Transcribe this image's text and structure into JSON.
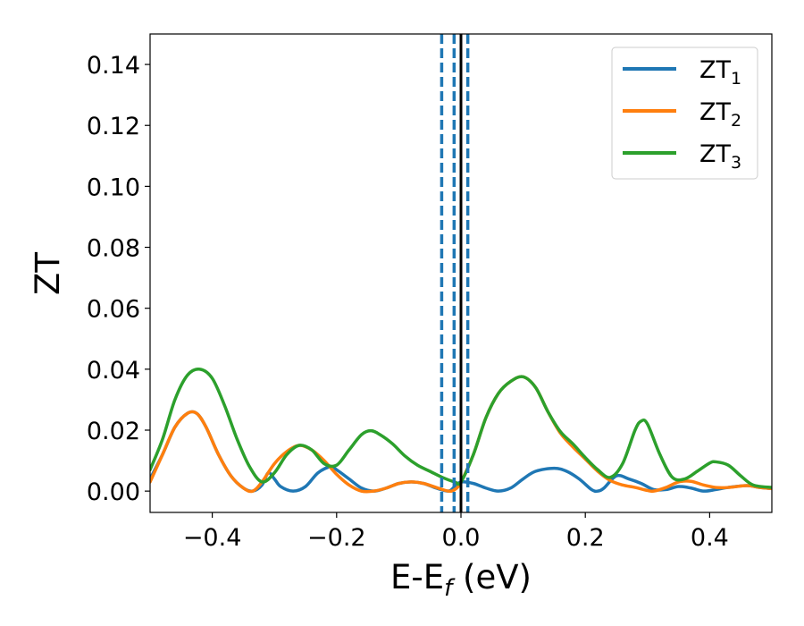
{
  "chart_data": {
    "type": "line",
    "xlabel": "E-E",
    "xlabel_sub": "f",
    "xlabel_unit": " (eV)",
    "ylabel": "ZT",
    "xlim": [
      -0.5,
      0.5
    ],
    "ylim": [
      -0.007,
      0.15
    ],
    "xticks": [
      -0.4,
      -0.2,
      0.0,
      0.2,
      0.4
    ],
    "xtick_labels": [
      "−0.4",
      "−0.2",
      "0.0",
      "0.2",
      "0.4"
    ],
    "yticks": [
      0.0,
      0.02,
      0.04,
      0.06,
      0.08,
      0.1,
      0.12,
      0.14
    ],
    "ytick_labels": [
      "0.00",
      "0.02",
      "0.04",
      "0.06",
      "0.08",
      "0.10",
      "0.12",
      "0.14"
    ],
    "grid": false,
    "legend_position": "top-right",
    "series": [
      {
        "name": "ZT",
        "name_sub": "1",
        "color": "#1f77b4",
        "points": [
          [
            -0.5,
            0.004
          ],
          [
            -0.48,
            0.012
          ],
          [
            -0.46,
            0.021
          ],
          [
            -0.44,
            0.0255
          ],
          [
            -0.425,
            0.0255
          ],
          [
            -0.41,
            0.021
          ],
          [
            -0.39,
            0.012
          ],
          [
            -0.37,
            0.005
          ],
          [
            -0.35,
            0.001
          ],
          [
            -0.335,
            0.0
          ],
          [
            -0.32,
            0.002
          ],
          [
            -0.31,
            0.006
          ],
          [
            -0.3,
            0.004
          ],
          [
            -0.29,
            0.0015
          ],
          [
            -0.27,
            0.0
          ],
          [
            -0.25,
            0.0015
          ],
          [
            -0.23,
            0.006
          ],
          [
            -0.21,
            0.008
          ],
          [
            -0.2,
            0.007
          ],
          [
            -0.18,
            0.004
          ],
          [
            -0.16,
            0.001
          ],
          [
            -0.14,
            0.0
          ],
          [
            -0.12,
            0.001
          ],
          [
            -0.1,
            0.0025
          ],
          [
            -0.08,
            0.003
          ],
          [
            -0.06,
            0.0025
          ],
          [
            -0.04,
            0.001
          ],
          [
            -0.02,
            0.0
          ],
          [
            -0.01,
            0.0015
          ],
          [
            0.0,
            0.003
          ],
          [
            0.02,
            0.0025
          ],
          [
            0.04,
            0.001
          ],
          [
            0.06,
            0.0
          ],
          [
            0.08,
            0.001
          ],
          [
            0.1,
            0.004
          ],
          [
            0.12,
            0.0065
          ],
          [
            0.15,
            0.0075
          ],
          [
            0.17,
            0.0065
          ],
          [
            0.19,
            0.004
          ],
          [
            0.21,
            0.0005
          ],
          [
            0.22,
            0.0
          ],
          [
            0.23,
            0.001
          ],
          [
            0.25,
            0.005
          ],
          [
            0.27,
            0.004
          ],
          [
            0.29,
            0.0025
          ],
          [
            0.31,
            0.0005
          ],
          [
            0.33,
            0.0005
          ],
          [
            0.35,
            0.0015
          ],
          [
            0.37,
            0.001
          ],
          [
            0.39,
            0.0
          ],
          [
            0.41,
            0.0005
          ],
          [
            0.43,
            0.0012
          ],
          [
            0.46,
            0.0018
          ],
          [
            0.48,
            0.0012
          ],
          [
            0.5,
            0.0008
          ]
        ]
      },
      {
        "name": "ZT",
        "name_sub": "2",
        "color": "#ff7f0e",
        "points": [
          [
            -0.5,
            0.003
          ],
          [
            -0.48,
            0.012
          ],
          [
            -0.46,
            0.021
          ],
          [
            -0.44,
            0.0255
          ],
          [
            -0.425,
            0.0255
          ],
          [
            -0.41,
            0.021
          ],
          [
            -0.39,
            0.012
          ],
          [
            -0.37,
            0.005
          ],
          [
            -0.35,
            0.001
          ],
          [
            -0.335,
            0.0
          ],
          [
            -0.32,
            0.003
          ],
          [
            -0.3,
            0.009
          ],
          [
            -0.28,
            0.013
          ],
          [
            -0.26,
            0.015
          ],
          [
            -0.24,
            0.0135
          ],
          [
            -0.22,
            0.01
          ],
          [
            -0.2,
            0.0055
          ],
          [
            -0.18,
            0.002
          ],
          [
            -0.16,
            0.0
          ],
          [
            -0.14,
            0.0
          ],
          [
            -0.12,
            0.001
          ],
          [
            -0.1,
            0.0025
          ],
          [
            -0.08,
            0.003
          ],
          [
            -0.06,
            0.0025
          ],
          [
            -0.04,
            0.0012
          ],
          [
            -0.02,
            0.0
          ],
          [
            -0.01,
            0.0005
          ],
          [
            0.0,
            0.003
          ],
          [
            0.02,
            0.012
          ],
          [
            0.04,
            0.024
          ],
          [
            0.06,
            0.032
          ],
          [
            0.08,
            0.036
          ],
          [
            0.1,
            0.0375
          ],
          [
            0.12,
            0.034
          ],
          [
            0.14,
            0.026
          ],
          [
            0.16,
            0.019
          ],
          [
            0.18,
            0.0145
          ],
          [
            0.2,
            0.0105
          ],
          [
            0.22,
            0.0065
          ],
          [
            0.24,
            0.0035
          ],
          [
            0.26,
            0.002
          ],
          [
            0.28,
            0.0012
          ],
          [
            0.3,
            0.0002
          ],
          [
            0.31,
            0.0
          ],
          [
            0.33,
            0.0012
          ],
          [
            0.35,
            0.003
          ],
          [
            0.37,
            0.0032
          ],
          [
            0.39,
            0.002
          ],
          [
            0.41,
            0.0012
          ],
          [
            0.43,
            0.0012
          ],
          [
            0.46,
            0.0018
          ],
          [
            0.48,
            0.0012
          ],
          [
            0.5,
            0.0008
          ]
        ]
      },
      {
        "name": "ZT",
        "name_sub": "3",
        "color": "#2ca02c",
        "points": [
          [
            -0.5,
            0.007
          ],
          [
            -0.48,
            0.017
          ],
          [
            -0.46,
            0.03
          ],
          [
            -0.44,
            0.038
          ],
          [
            -0.42,
            0.04
          ],
          [
            -0.4,
            0.037
          ],
          [
            -0.38,
            0.028
          ],
          [
            -0.36,
            0.017
          ],
          [
            -0.34,
            0.008
          ],
          [
            -0.32,
            0.003
          ],
          [
            -0.3,
            0.006
          ],
          [
            -0.28,
            0.012
          ],
          [
            -0.26,
            0.015
          ],
          [
            -0.24,
            0.0135
          ],
          [
            -0.22,
            0.009
          ],
          [
            -0.2,
            0.0085
          ],
          [
            -0.18,
            0.0135
          ],
          [
            -0.16,
            0.0185
          ],
          [
            -0.145,
            0.0198
          ],
          [
            -0.13,
            0.0185
          ],
          [
            -0.11,
            0.0155
          ],
          [
            -0.09,
            0.0115
          ],
          [
            -0.07,
            0.0085
          ],
          [
            -0.05,
            0.0065
          ],
          [
            -0.03,
            0.0045
          ],
          [
            -0.01,
            0.003
          ],
          [
            0.0,
            0.003
          ],
          [
            0.02,
            0.012
          ],
          [
            0.04,
            0.024
          ],
          [
            0.06,
            0.032
          ],
          [
            0.08,
            0.036
          ],
          [
            0.1,
            0.0375
          ],
          [
            0.12,
            0.034
          ],
          [
            0.14,
            0.026
          ],
          [
            0.16,
            0.0195
          ],
          [
            0.18,
            0.0155
          ],
          [
            0.2,
            0.011
          ],
          [
            0.22,
            0.007
          ],
          [
            0.24,
            0.0045
          ],
          [
            0.26,
            0.009
          ],
          [
            0.28,
            0.02
          ],
          [
            0.29,
            0.023
          ],
          [
            0.3,
            0.022
          ],
          [
            0.32,
            0.012
          ],
          [
            0.34,
            0.0045
          ],
          [
            0.36,
            0.004
          ],
          [
            0.38,
            0.0065
          ],
          [
            0.4,
            0.0092
          ],
          [
            0.41,
            0.0096
          ],
          [
            0.43,
            0.0085
          ],
          [
            0.45,
            0.005
          ],
          [
            0.47,
            0.002
          ],
          [
            0.5,
            0.0012
          ]
        ]
      }
    ],
    "vlines": [
      {
        "x": -0.031,
        "style": "dashed",
        "color": "#1f77b4"
      },
      {
        "x": -0.011,
        "style": "dashed",
        "color": "#1f77b4"
      },
      {
        "x": 0.0,
        "style": "solid",
        "color": "#000000"
      },
      {
        "x": 0.011,
        "style": "dashed",
        "color": "#1f77b4"
      }
    ]
  }
}
